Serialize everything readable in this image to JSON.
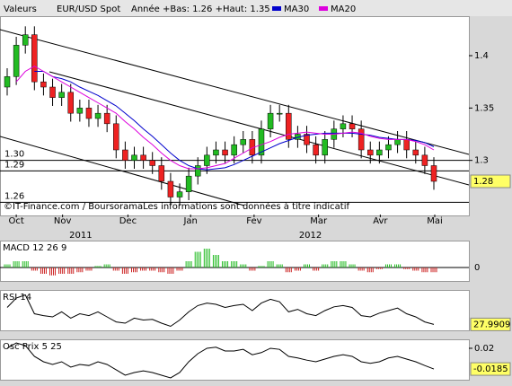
{
  "header": {
    "label": "Valeurs",
    "instrument": "EUR/USD Spot",
    "range": "Année +Bas: 1.26 +Haut: 1.35"
  },
  "chart_data": [
    {
      "type": "candlestick",
      "legend": "top",
      "open": [
        1.37,
        1.38,
        1.41,
        1.42,
        1.375,
        1.37,
        1.36,
        1.365,
        1.345,
        1.35,
        1.34,
        1.345,
        1.335,
        1.31,
        1.3,
        1.305,
        1.3,
        1.295,
        1.28,
        1.265,
        1.27,
        1.285,
        1.295,
        1.305,
        1.31,
        1.305,
        1.315,
        1.32,
        1.305,
        1.33,
        1.345,
        1.345,
        1.32,
        1.325,
        1.315,
        1.305,
        1.32,
        1.33,
        1.335,
        1.33,
        1.31,
        1.305,
        1.31,
        1.315,
        1.32,
        1.31,
        1.305,
        1.295
      ],
      "high": [
        1.388,
        1.418,
        1.428,
        1.428,
        1.383,
        1.378,
        1.373,
        1.373,
        1.358,
        1.358,
        1.353,
        1.353,
        1.343,
        1.318,
        1.313,
        1.313,
        1.308,
        1.303,
        1.288,
        1.278,
        1.293,
        1.303,
        1.313,
        1.318,
        1.318,
        1.323,
        1.328,
        1.328,
        1.338,
        1.353,
        1.353,
        1.353,
        1.333,
        1.333,
        1.323,
        1.328,
        1.338,
        1.343,
        1.343,
        1.338,
        1.318,
        1.318,
        1.323,
        1.328,
        1.328,
        1.318,
        1.313,
        1.303
      ],
      "low": [
        1.362,
        1.372,
        1.402,
        1.367,
        1.362,
        1.352,
        1.352,
        1.337,
        1.337,
        1.332,
        1.332,
        1.327,
        1.302,
        1.292,
        1.292,
        1.292,
        1.287,
        1.272,
        1.257,
        1.257,
        1.262,
        1.277,
        1.287,
        1.297,
        1.297,
        1.297,
        1.307,
        1.297,
        1.297,
        1.322,
        1.337,
        1.312,
        1.312,
        1.307,
        1.297,
        1.297,
        1.312,
        1.322,
        1.322,
        1.302,
        1.297,
        1.297,
        1.302,
        1.307,
        1.302,
        1.297,
        1.287,
        1.272
      ],
      "close": [
        1.38,
        1.41,
        1.42,
        1.375,
        1.37,
        1.36,
        1.365,
        1.345,
        1.35,
        1.34,
        1.345,
        1.335,
        1.31,
        1.3,
        1.305,
        1.3,
        1.295,
        1.28,
        1.265,
        1.27,
        1.285,
        1.295,
        1.305,
        1.31,
        1.305,
        1.315,
        1.32,
        1.305,
        1.33,
        1.345,
        1.345,
        1.32,
        1.325,
        1.315,
        1.305,
        1.32,
        1.33,
        1.335,
        1.33,
        1.31,
        1.305,
        1.31,
        1.315,
        1.32,
        1.31,
        1.305,
        1.295,
        1.28
      ],
      "up_color": "#22bb22",
      "down_color": "#ee2222",
      "series": [
        {
          "name": "MA30",
          "color": "#0000cc",
          "values": [
            null,
            null,
            null,
            1.385,
            1.385,
            1.38,
            1.378,
            1.375,
            1.37,
            1.366,
            1.362,
            1.357,
            1.352,
            1.345,
            1.338,
            1.33,
            1.323,
            1.315,
            1.307,
            1.3,
            1.295,
            1.292,
            1.291,
            1.292,
            1.293,
            1.296,
            1.3,
            1.304,
            1.308,
            1.312,
            1.316,
            1.319,
            1.322,
            1.324,
            1.325,
            1.326,
            1.326,
            1.326,
            1.326,
            1.325,
            1.324,
            1.322,
            1.321,
            1.32,
            1.32,
            1.319,
            1.317,
            1.313
          ]
        },
        {
          "name": "MA20",
          "color": "#dd00dd",
          "values": [
            null,
            1.375,
            1.385,
            1.39,
            1.385,
            1.38,
            1.375,
            1.37,
            1.365,
            1.36,
            1.355,
            1.35,
            1.345,
            1.337,
            1.33,
            1.322,
            1.315,
            1.307,
            1.3,
            1.295,
            1.292,
            1.292,
            1.293,
            1.295,
            1.297,
            1.302,
            1.307,
            1.312,
            1.315,
            1.318,
            1.322,
            1.325,
            1.326,
            1.327,
            1.326,
            1.325,
            1.325,
            1.326,
            1.327,
            1.326,
            1.323,
            1.321,
            1.32,
            1.32,
            1.32,
            1.318,
            1.315,
            1.31
          ]
        }
      ],
      "ylim": [
        1.25,
        1.436
      ],
      "yticks": [
        1.3,
        1.35,
        1.4
      ],
      "levels": [
        {
          "value": 1.3,
          "label": "1.30"
        },
        {
          "value": 1.29,
          "label": "1.29"
        },
        {
          "value": 1.26,
          "label": "1.26"
        }
      ],
      "xticks": [
        {
          "value": 1,
          "label": "Oct"
        },
        {
          "value": 6.1,
          "label": "Nov"
        },
        {
          "value": 13.3,
          "label": "Dec"
        },
        {
          "value": 20.2,
          "label": "Jan"
        },
        {
          "value": 27.2,
          "label": "Fev"
        },
        {
          "value": 34.3,
          "label": "Mar"
        },
        {
          "value": 41.1,
          "label": "Avr"
        },
        {
          "value": 47.1,
          "label": "Mai"
        }
      ],
      "years": [
        {
          "value": 8.1,
          "label": "2011"
        },
        {
          "value": 33.4,
          "label": "2012"
        }
      ],
      "annotation": "©IT-Finance.com / BoursoramaLes informations sont données à titre indicatif"
    },
    {
      "type": "bar",
      "title": "MACD 12 26 9",
      "up_color": "#22bb22",
      "down_color": "#cc2222",
      "values": [
        0.001,
        0.002,
        0.002,
        -0.001,
        -0.002,
        -0.0025,
        -0.002,
        -0.002,
        -0.0015,
        -0.001,
        0.0005,
        0.001,
        -0.001,
        -0.002,
        -0.0015,
        -0.001,
        -0.001,
        -0.0015,
        -0.002,
        -0.001,
        0.002,
        0.005,
        0.006,
        0.004,
        0.002,
        0.002,
        0.001,
        -0.001,
        0.0005,
        0.002,
        0.001,
        -0.0015,
        -0.001,
        0.001,
        -0.001,
        0.001,
        0.002,
        0.002,
        0.001,
        -0.001,
        -0.0015,
        -0.0005,
        0.001,
        0.001,
        -0.0005,
        -0.001,
        -0.0015,
        -0.0015
      ],
      "ylim": [
        -0.004,
        0.008
      ],
      "yticks": [
        0
      ]
    },
    {
      "type": "line",
      "title": "RSI 14",
      "color": "#000000",
      "values": [
        55,
        70,
        75,
        45,
        42,
        40,
        48,
        38,
        45,
        42,
        48,
        40,
        32,
        30,
        38,
        35,
        36,
        30,
        25,
        35,
        48,
        58,
        62,
        60,
        55,
        58,
        60,
        50,
        62,
        68,
        64,
        48,
        52,
        45,
        42,
        50,
        56,
        58,
        55,
        42,
        40,
        46,
        50,
        54,
        45,
        40,
        32,
        27.9909
      ],
      "ylim": [
        20,
        80
      ]
    },
    {
      "type": "line",
      "title": "Osc Prix 5 25",
      "color": "#000000",
      "values": [
        0.02,
        0.03,
        0.025,
        0.005,
        -0.005,
        -0.01,
        -0.005,
        -0.015,
        -0.01,
        -0.012,
        -0.005,
        -0.01,
        -0.02,
        -0.03,
        -0.025,
        -0.022,
        -0.025,
        -0.03,
        -0.035,
        -0.025,
        -0.005,
        0.01,
        0.02,
        0.022,
        0.015,
        0.015,
        0.018,
        0.008,
        0.012,
        0.02,
        0.018,
        0.005,
        0.002,
        -0.002,
        -0.005,
        0.0,
        0.005,
        0.008,
        0.005,
        -0.005,
        -0.008,
        -0.005,
        0.002,
        0.005,
        0.0,
        -0.005,
        -0.012,
        -0.0185
      ],
      "ylim": [
        -0.0367,
        0.0333
      ],
      "yticks": [
        0.02
      ]
    }
  ]
}
